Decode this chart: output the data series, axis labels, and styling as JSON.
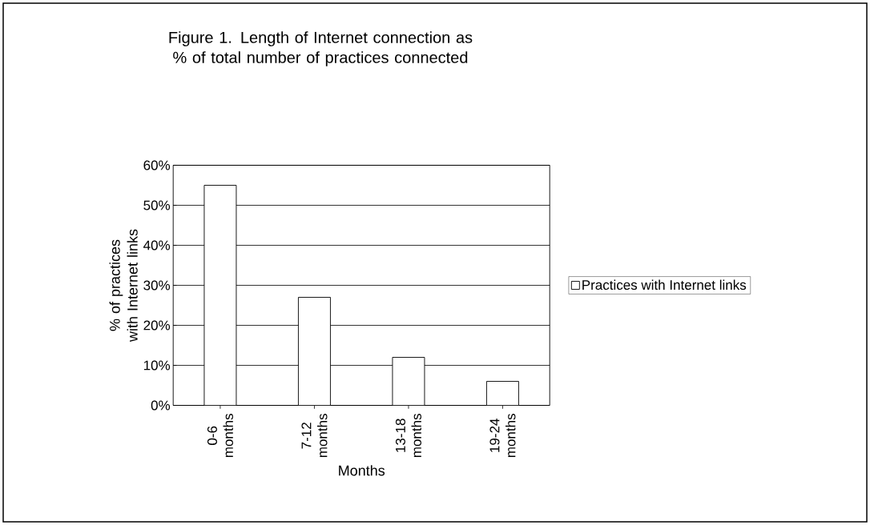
{
  "chart_data": {
    "type": "bar",
    "title": "Figure 1. Length of Internet connection as % of total number of practices connected",
    "xlabel": "Months",
    "ylabel": "% of practices with Internet links",
    "categories": [
      "0-6 months",
      "7-12 months",
      "13-18 months",
      "19-24 months"
    ],
    "series": [
      {
        "name": "Practices with Internet links",
        "color": "#ffffff",
        "values": [
          55,
          27,
          12,
          6
        ]
      }
    ],
    "ylim": [
      0,
      60
    ],
    "yticks": [
      {
        "value": 0,
        "label": "0%"
      },
      {
        "value": 10,
        "label": "10%"
      },
      {
        "value": 20,
        "label": "20%"
      },
      {
        "value": 30,
        "label": "30%"
      },
      {
        "value": 40,
        "label": "40%"
      },
      {
        "value": 50,
        "label": "50%"
      },
      {
        "value": 60,
        "label": "60%"
      }
    ],
    "grid": "y",
    "legend": "right"
  }
}
